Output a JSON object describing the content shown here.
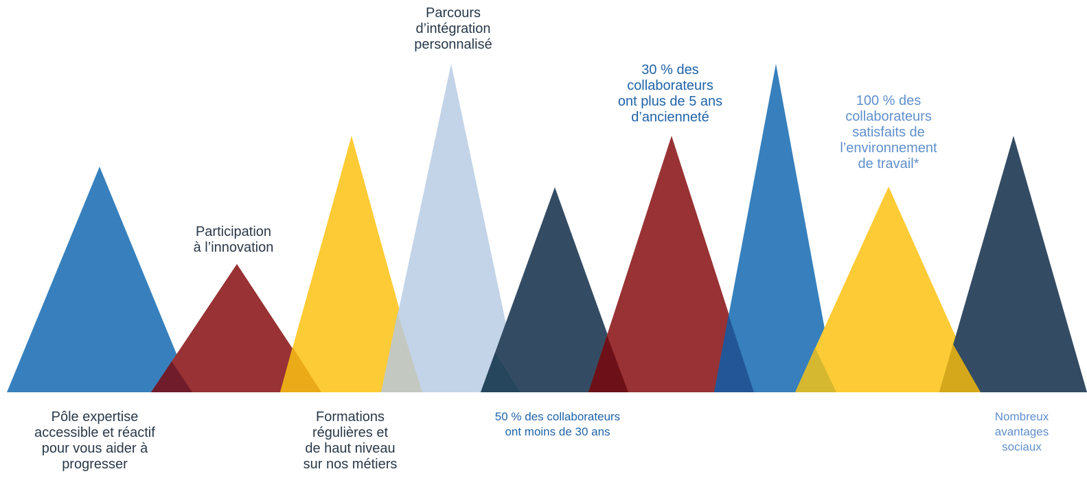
{
  "palette": {
    "blue": "#3780bd",
    "red": "#983234",
    "yellow": "#fdcb35",
    "light_blue": "#c3d4e8",
    "slate": "#344c63",
    "overlap_blue_red": "#711c2b",
    "overlap_red_yellow": "#ebaa17",
    "overlap_yellow_light": "#c3c9c0",
    "overlap_light_slate": "#26465e",
    "overlap_slate_red": "#6e1017",
    "overlap_red_blue": "#235696",
    "overlap_blue_yellow": "#d5b82f",
    "overlap_yellow_slate": "#d4a81a",
    "text_dark": "#283848",
    "text_navy": "#1f63a8",
    "text_sky": "#5f8fcc"
  },
  "labels": {
    "expertise": [
      "Pôle expertise",
      "accessible et réactif",
      "pour vous aider à",
      "progresser"
    ],
    "innovation": [
      "Participation",
      "à l’innovation"
    ],
    "formations": [
      "Formations",
      "régulières et",
      "de haut niveau",
      "sur nos métiers"
    ],
    "integration": [
      "Parcours",
      "d’intégration",
      "personnalisé"
    ],
    "age": [
      "50 % des collaborateurs",
      "ont moins de 30 ans"
    ],
    "anciennete": [
      "30 % des",
      "collaborateurs",
      "ont plus de 5 ans",
      "d’ancienneté"
    ],
    "satisfaction": [
      "100 % des",
      "collaborateurs",
      "satisfaits de",
      "l’environnement",
      "de travail*"
    ],
    "avantages": [
      "Nombreux",
      "avantages",
      "sociaux"
    ]
  }
}
